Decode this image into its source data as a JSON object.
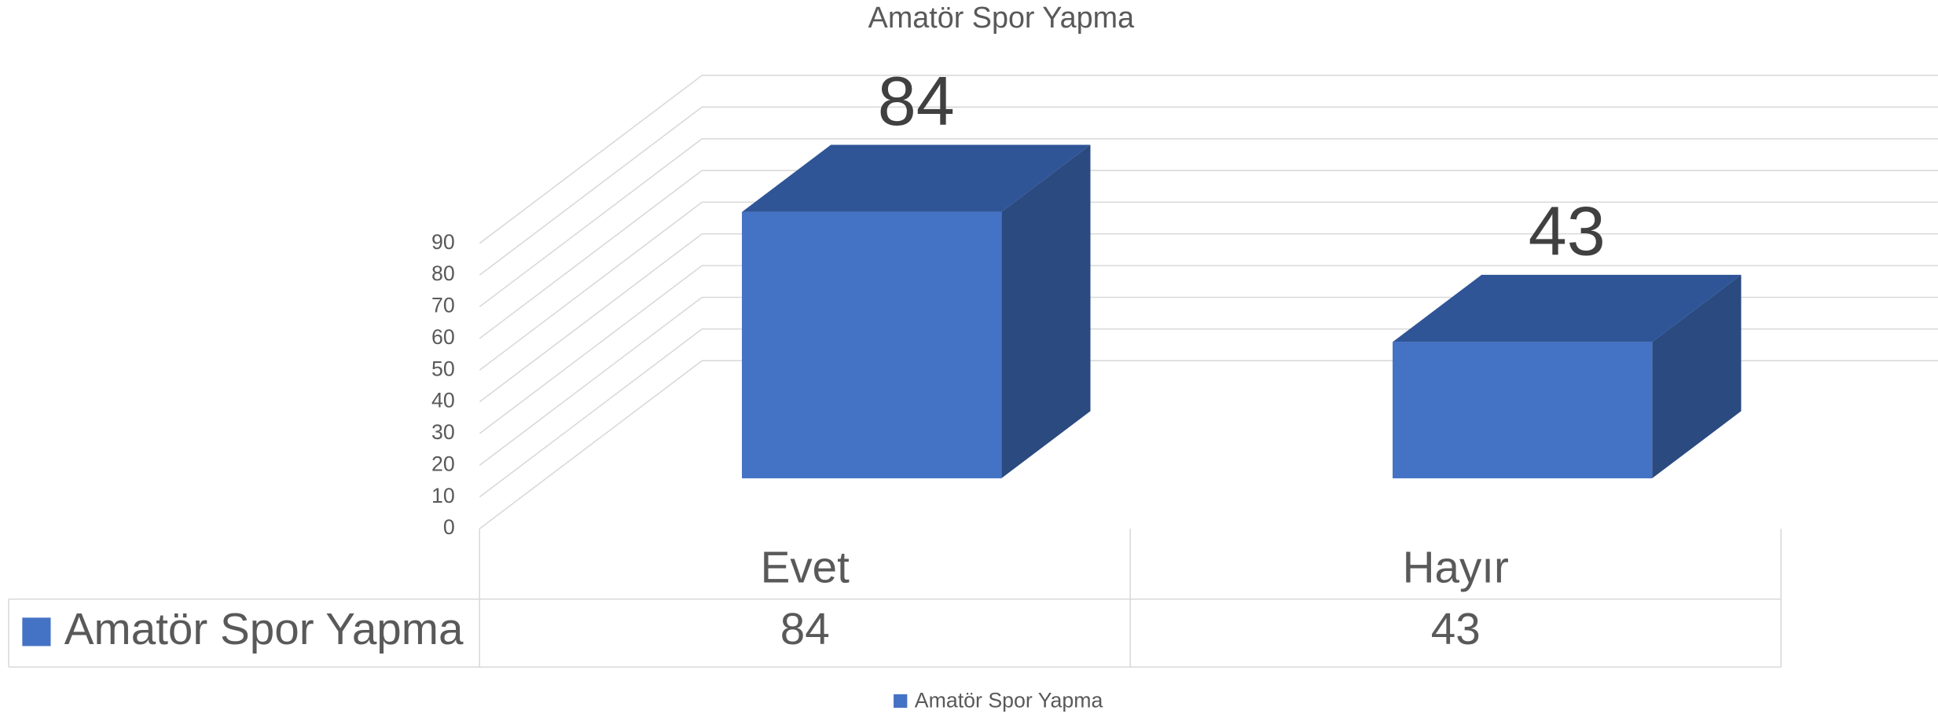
{
  "chart_data": {
    "type": "bar3d",
    "title": "Amatör Spor Yapma",
    "categories": [
      "Evet",
      "Hayır"
    ],
    "series": [
      {
        "name": "Amatör Spor Yapma",
        "color": "#4472c4",
        "values": [
          84,
          43
        ]
      }
    ],
    "ylim": [
      0,
      90
    ],
    "yticks": [
      0,
      10,
      20,
      30,
      40,
      50,
      60,
      70,
      80,
      90
    ],
    "grid": true,
    "data_table": true,
    "legend": "bottom"
  }
}
